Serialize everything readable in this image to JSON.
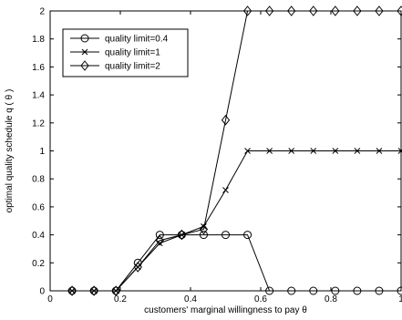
{
  "chart_data": {
    "type": "line",
    "title": "",
    "xlabel": "customers' marginal willingness to pay θ",
    "ylabel": "optimal quality schedule q ( θ )",
    "xlim": [
      0,
      1
    ],
    "ylim": [
      0,
      2
    ],
    "xticks": [
      "0",
      "0.2",
      "0.4",
      "0.6",
      "0.8",
      "1"
    ],
    "yticks": [
      "0",
      "0.2",
      "0.4",
      "0.6",
      "0.8",
      "1",
      "1.2",
      "1.4",
      "1.6",
      "1.8",
      "2"
    ],
    "grid": false,
    "legend_position": "top-left",
    "series": [
      {
        "name": "quality limit=0.4",
        "marker": "circle",
        "x": [
          0.0625,
          0.125,
          0.1875,
          0.25,
          0.3125,
          0.375,
          0.4375,
          0.5,
          0.5625,
          0.625,
          0.6875,
          0.75,
          0.8125,
          0.875,
          0.9375,
          1.0
        ],
        "y": [
          0,
          0,
          0,
          0.2,
          0.4,
          0.4,
          0.4,
          0.4,
          0.4,
          0,
          0,
          0,
          0,
          0,
          0,
          0
        ]
      },
      {
        "name": "quality limit=1",
        "marker": "x",
        "x": [
          0.0625,
          0.125,
          0.1875,
          0.25,
          0.3125,
          0.375,
          0.4375,
          0.5,
          0.5625,
          0.625,
          0.6875,
          0.75,
          0.8125,
          0.875,
          0.9375,
          1.0
        ],
        "y": [
          0,
          0,
          0,
          0.17,
          0.34,
          0.4,
          0.46,
          0.72,
          1.0,
          1.0,
          1.0,
          1.0,
          1.0,
          1.0,
          1.0,
          1.0
        ]
      },
      {
        "name": "quality limit=2",
        "marker": "diamond",
        "x": [
          0.0625,
          0.125,
          0.1875,
          0.25,
          0.3125,
          0.375,
          0.4375,
          0.5,
          0.5625,
          0.625,
          0.6875,
          0.75,
          0.8125,
          0.875,
          0.9375,
          1.0
        ],
        "y": [
          0,
          0,
          0,
          0.17,
          0.36,
          0.4,
          0.44,
          1.22,
          2.0,
          2.0,
          2.0,
          2.0,
          2.0,
          2.0,
          2.0,
          2.0
        ]
      }
    ]
  }
}
